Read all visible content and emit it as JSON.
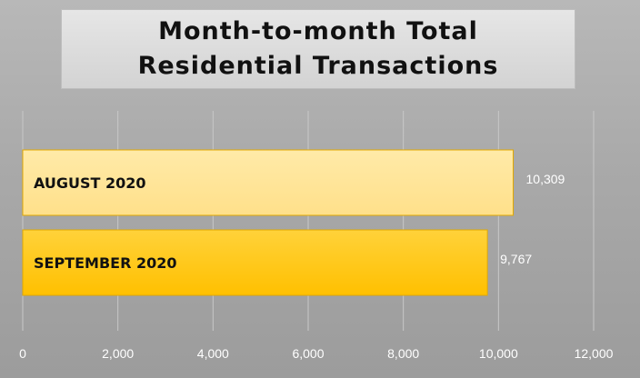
{
  "chart_data": {
    "type": "bar",
    "orientation": "horizontal",
    "title": "Month-to-month Total Residential Transactions",
    "categories": [
      "AUGUST 2020",
      "SEPTEMBER 2020"
    ],
    "values": [
      10309,
      9767
    ],
    "value_labels": [
      "10,309",
      "9,767"
    ],
    "xlim": [
      0,
      12000
    ],
    "ticks": [
      0,
      2000,
      4000,
      6000,
      8000,
      10000,
      12000
    ],
    "tick_labels": [
      "0",
      "2,000",
      "4,000",
      "6,000",
      "8,000",
      "10,000",
      "12,000"
    ],
    "grid": true,
    "legend": "none",
    "colors": {
      "bar_1": "#ffe08a",
      "bar_2": "#ffc000",
      "bar_border": "#e0a800",
      "background": "#a9a9a9",
      "gridline": "#c8c8c8"
    }
  }
}
